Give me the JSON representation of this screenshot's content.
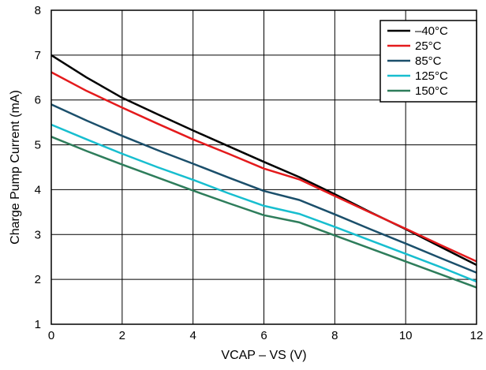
{
  "chart_data": {
    "type": "line",
    "title": "",
    "xlabel": "VCAP – VS (V)",
    "ylabel": "Charge Pump Current (mA)",
    "xlim": [
      0,
      12
    ],
    "ylim": [
      1,
      8
    ],
    "x_ticks": [
      0,
      2,
      4,
      6,
      8,
      10,
      12
    ],
    "y_ticks": [
      1,
      2,
      3,
      4,
      5,
      6,
      7,
      8
    ],
    "grid": true,
    "legend_position": "top-right",
    "series": [
      {
        "name": "–40°C",
        "color": "#000000",
        "x": [
          0,
          1,
          2,
          3,
          4,
          5,
          6,
          7,
          8,
          9,
          10,
          11,
          12
        ],
        "y": [
          7.0,
          6.5,
          6.05,
          5.68,
          5.32,
          4.97,
          4.62,
          4.28,
          3.9,
          3.5,
          3.12,
          2.72,
          2.32
        ]
      },
      {
        "name": "25°C",
        "color": "#e41a1c",
        "x": [
          0,
          1,
          2,
          3,
          4,
          5,
          6,
          7,
          8,
          9,
          10,
          11,
          12
        ],
        "y": [
          6.62,
          6.2,
          5.83,
          5.47,
          5.12,
          4.8,
          4.47,
          4.23,
          3.86,
          3.49,
          3.13,
          2.76,
          2.4
        ]
      },
      {
        "name": "85°C",
        "color": "#1b4f6b",
        "x": [
          0,
          1,
          2,
          3,
          4,
          5,
          6,
          7,
          8,
          9,
          10,
          11,
          12
        ],
        "y": [
          5.9,
          5.54,
          5.2,
          4.88,
          4.58,
          4.27,
          3.97,
          3.77,
          3.45,
          3.12,
          2.8,
          2.47,
          2.15
        ]
      },
      {
        "name": "125°C",
        "color": "#17becf",
        "x": [
          0,
          1,
          2,
          3,
          4,
          5,
          6,
          7,
          8,
          9,
          10,
          11,
          12
        ],
        "y": [
          5.45,
          5.12,
          4.8,
          4.5,
          4.22,
          3.92,
          3.64,
          3.46,
          3.17,
          2.87,
          2.57,
          2.27,
          1.95
        ]
      },
      {
        "name": "150°C",
        "color": "#2e7d5b",
        "x": [
          0,
          1,
          2,
          3,
          4,
          5,
          6,
          7,
          8,
          9,
          10,
          11,
          12
        ],
        "y": [
          5.18,
          4.86,
          4.56,
          4.27,
          3.98,
          3.7,
          3.43,
          3.27,
          2.98,
          2.69,
          2.4,
          2.11,
          1.82
        ]
      }
    ]
  }
}
